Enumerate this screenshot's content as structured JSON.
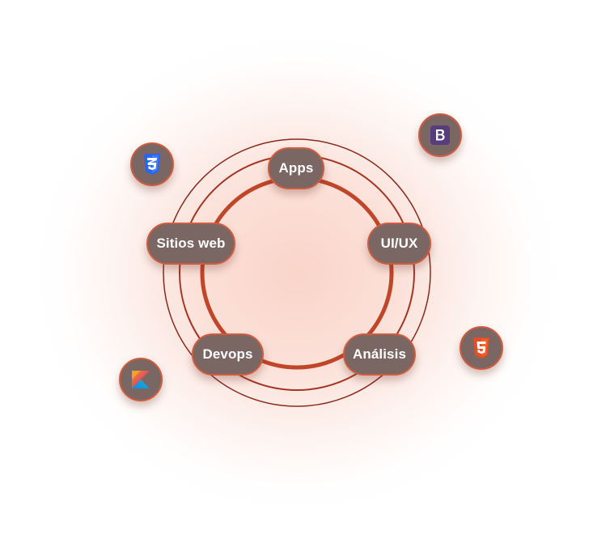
{
  "diagram": {
    "nodes": [
      {
        "id": "apps",
        "label": "Apps"
      },
      {
        "id": "uiux",
        "label": "UI/UX"
      },
      {
        "id": "analisis",
        "label": "Análisis"
      },
      {
        "id": "devops",
        "label": "Devops"
      },
      {
        "id": "sitios-web",
        "label": "Sitios web"
      }
    ],
    "tech_icons": [
      {
        "id": "css3",
        "icon": "css3-icon",
        "color": "#2965f1"
      },
      {
        "id": "bootstrap",
        "icon": "bootstrap-icon",
        "color": "#563d7c"
      },
      {
        "id": "html5",
        "icon": "html5-icon",
        "color": "#e44d26"
      },
      {
        "id": "kotlin",
        "icon": "kotlin-icon",
        "color": "#f18e33"
      }
    ],
    "colors": {
      "ring_thick": "#c0462a",
      "ring_thin": "#8a2a1c",
      "node_fill": "#7a6662",
      "node_border": "#cf5c3e",
      "glow": "#f7baa8"
    }
  }
}
